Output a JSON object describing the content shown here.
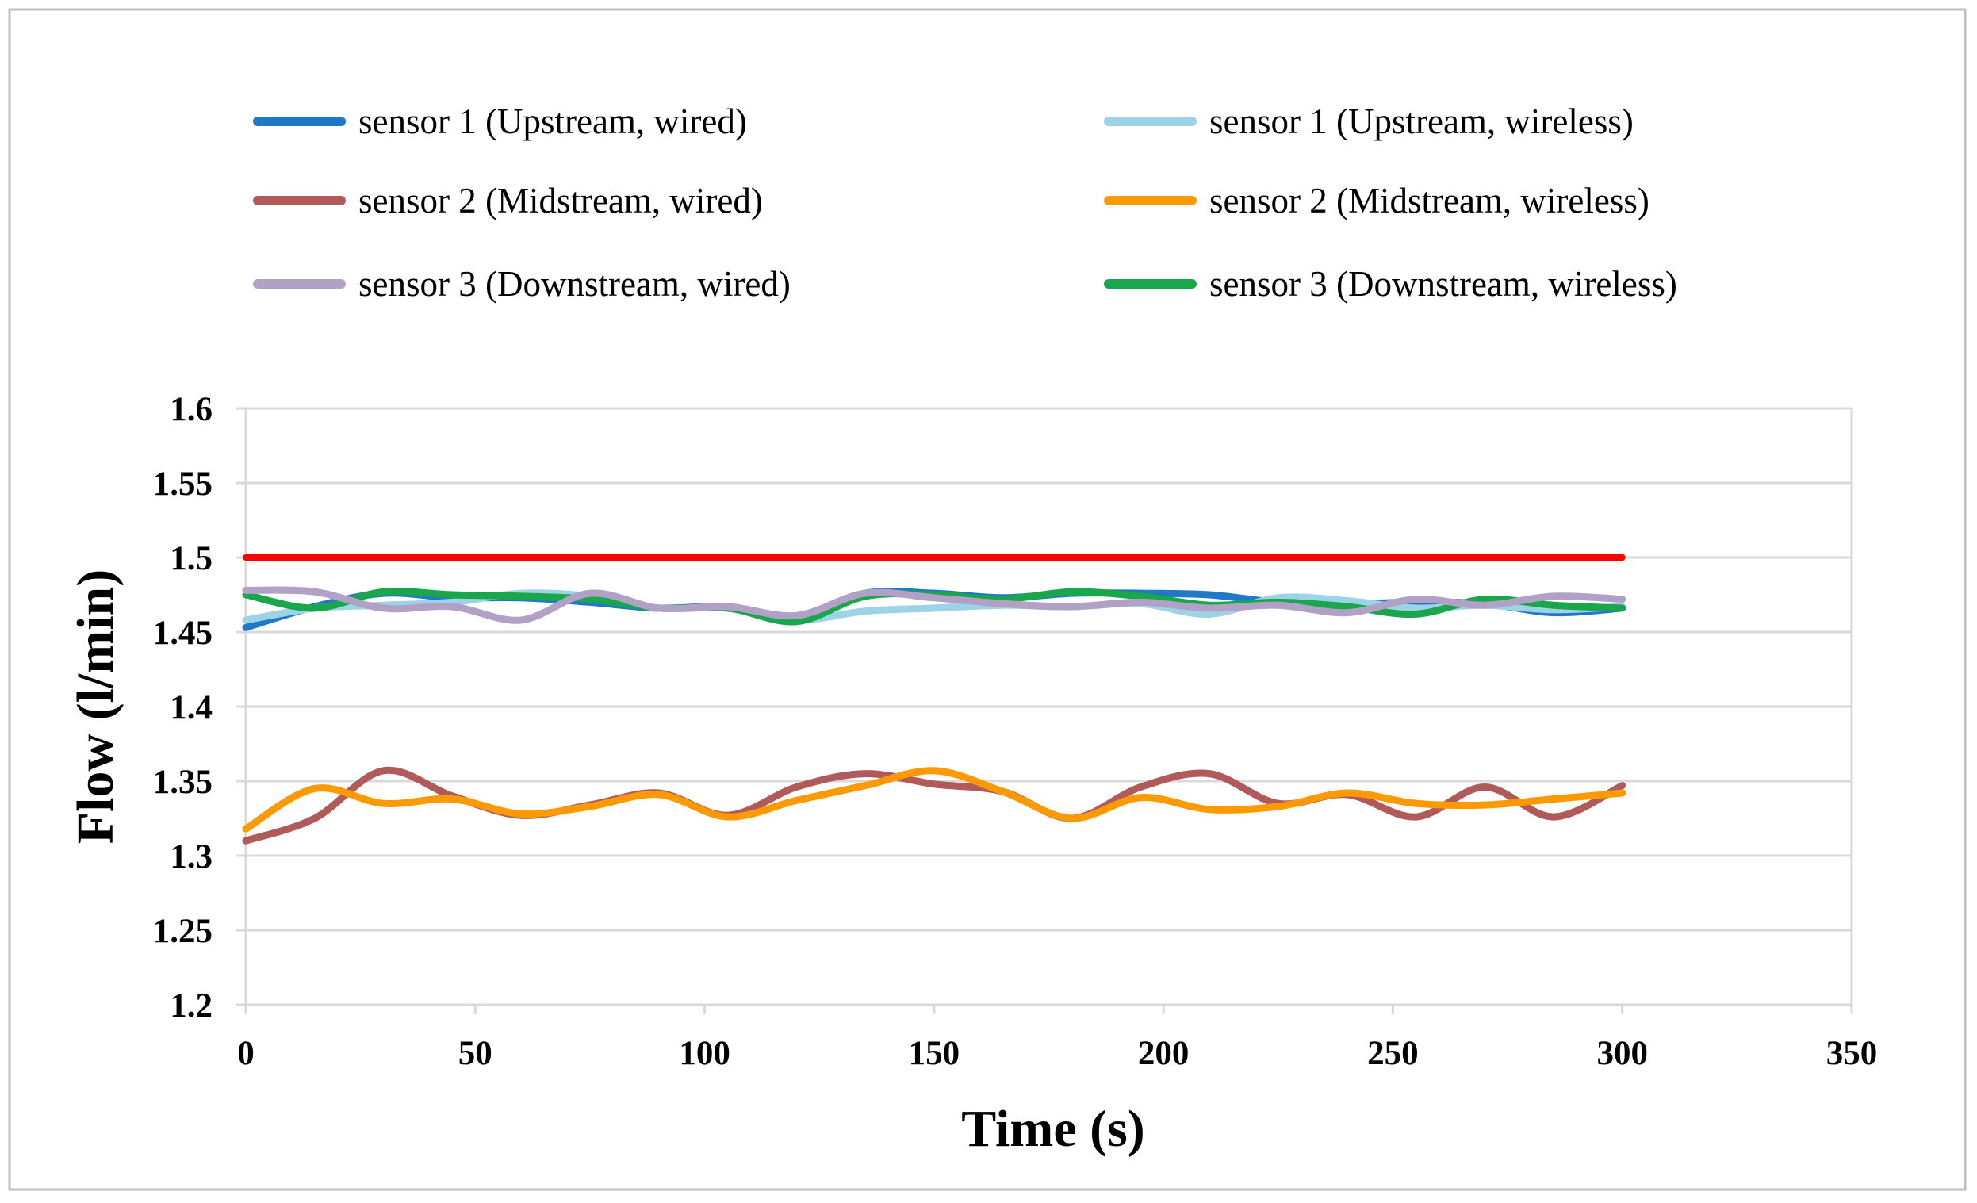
{
  "chart_data": {
    "type": "line",
    "title": "",
    "xlabel": "Time (s)",
    "ylabel": "Flow (l/min)",
    "xlim": [
      0,
      350
    ],
    "ylim": [
      1.2,
      1.6
    ],
    "xticks": [
      0,
      50,
      100,
      150,
      200,
      250,
      300,
      350
    ],
    "yticks": [
      1.2,
      1.25,
      1.3,
      1.35,
      1.4,
      1.45,
      1.5,
      1.55,
      1.6
    ],
    "xtick_labels": [
      "0",
      "50",
      "100",
      "150",
      "200",
      "250",
      "300",
      "350"
    ],
    "ytick_labels": [
      "1.2",
      "1.25",
      "1.3",
      "1.35",
      "1.4",
      "1.45",
      "1.5",
      "1.55",
      "1.6"
    ],
    "grid": "horizontal",
    "reference_line": {
      "value": 1.5,
      "color": "#ff0000",
      "x_range": [
        0,
        300
      ]
    },
    "legend_columns": 2,
    "series": [
      {
        "name": "sensor 1 (Upstream, wired)",
        "color": "#1f78c8",
        "x": [
          0,
          15,
          30,
          45,
          60,
          75,
          90,
          105,
          120,
          135,
          150,
          165,
          180,
          195,
          210,
          225,
          240,
          255,
          270,
          285,
          300
        ],
        "values": [
          1.453,
          1.467,
          1.476,
          1.473,
          1.473,
          1.47,
          1.466,
          1.467,
          1.46,
          1.476,
          1.476,
          1.473,
          1.476,
          1.476,
          1.475,
          1.47,
          1.469,
          1.47,
          1.469,
          1.463,
          1.466
        ]
      },
      {
        "name": "sensor 1 (Upstream, wireless)",
        "color": "#9dd3e6",
        "x": [
          0,
          15,
          30,
          45,
          60,
          75,
          90,
          105,
          120,
          135,
          150,
          165,
          180,
          195,
          210,
          225,
          240,
          255,
          270,
          285,
          300
        ],
        "values": [
          1.458,
          1.466,
          1.468,
          1.47,
          1.476,
          1.474,
          1.466,
          1.466,
          1.458,
          1.464,
          1.466,
          1.468,
          1.467,
          1.469,
          1.462,
          1.473,
          1.471,
          1.466,
          1.468,
          1.465,
          1.467
        ]
      },
      {
        "name": "sensor 2 (Midstream, wired)",
        "color": "#b05a5a",
        "x": [
          0,
          15,
          30,
          45,
          60,
          75,
          90,
          105,
          120,
          135,
          150,
          165,
          180,
          195,
          210,
          225,
          240,
          255,
          270,
          285,
          300
        ],
        "values": [
          1.31,
          1.325,
          1.357,
          1.34,
          1.327,
          1.334,
          1.342,
          1.327,
          1.346,
          1.355,
          1.348,
          1.343,
          1.325,
          1.346,
          1.355,
          1.335,
          1.341,
          1.326,
          1.346,
          1.326,
          1.347
        ]
      },
      {
        "name": "sensor 2 (Midstream, wireless)",
        "color": "#ff9900",
        "x": [
          0,
          15,
          30,
          45,
          60,
          75,
          90,
          105,
          120,
          135,
          150,
          165,
          180,
          195,
          210,
          225,
          240,
          255,
          270,
          285,
          300
        ],
        "values": [
          1.318,
          1.345,
          1.335,
          1.338,
          1.328,
          1.333,
          1.341,
          1.326,
          1.337,
          1.347,
          1.357,
          1.343,
          1.325,
          1.339,
          1.331,
          1.333,
          1.342,
          1.335,
          1.334,
          1.338,
          1.342
        ]
      },
      {
        "name": "sensor 3 (Downstream, wired)",
        "color": "#b2a1c7",
        "x": [
          0,
          15,
          30,
          45,
          60,
          75,
          90,
          105,
          120,
          135,
          150,
          165,
          180,
          195,
          210,
          225,
          240,
          255,
          270,
          285,
          300
        ],
        "values": [
          1.478,
          1.477,
          1.466,
          1.467,
          1.458,
          1.476,
          1.466,
          1.467,
          1.461,
          1.476,
          1.473,
          1.469,
          1.467,
          1.47,
          1.466,
          1.468,
          1.463,
          1.472,
          1.468,
          1.474,
          1.472
        ]
      },
      {
        "name": "sensor 3 (Downstream, wireless)",
        "color": "#1aa64b",
        "x": [
          0,
          15,
          30,
          45,
          60,
          75,
          90,
          105,
          120,
          135,
          150,
          165,
          180,
          195,
          210,
          225,
          240,
          255,
          270,
          285,
          300
        ],
        "values": [
          1.475,
          1.466,
          1.477,
          1.475,
          1.474,
          1.472,
          1.466,
          1.466,
          1.457,
          1.474,
          1.475,
          1.472,
          1.477,
          1.474,
          1.468,
          1.47,
          1.467,
          1.462,
          1.472,
          1.468,
          1.466
        ]
      }
    ]
  }
}
